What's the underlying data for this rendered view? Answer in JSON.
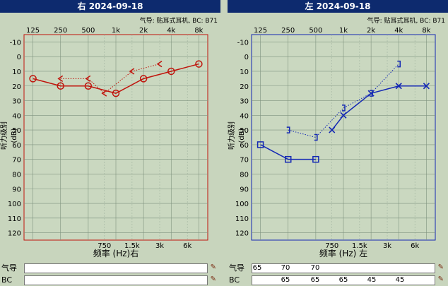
{
  "right": {
    "title": "右 2024-09-18",
    "subtitle": "",
    "axis_x_label": "频率 (Hz)右",
    "y_label": "听力级别 (dB)"
  },
  "left": {
    "title": "左 2024-09-18",
    "subtitle": "气导: 贴耳式耳机, BC: B71",
    "axis_x_label": "频率 (Hz) 左",
    "y_label": "听力级别 (dB)"
  },
  "right_subtitle": "气导: 贴耳式耳机, BC: B71",
  "ticks": {
    "top": [
      "125",
      "250",
      "500",
      "1k",
      "2k",
      "4k",
      "8k"
    ],
    "bottom": [
      "750",
      "1.5k",
      "3k",
      "6k"
    ],
    "y": [
      "-10",
      "0",
      "10",
      "20",
      "30",
      "40",
      "50",
      "60",
      "70",
      "80",
      "90",
      "100",
      "110",
      "120"
    ]
  },
  "table": {
    "ac_label": "气导",
    "bc_label": "BC",
    "right_ac": [
      "",
      "",
      "",
      "",
      "",
      "",
      ""
    ],
    "right_bc": [
      "",
      "",
      "",
      "",
      "",
      "",
      ""
    ],
    "left_ac": [
      "65",
      "70",
      "70",
      "",
      "",
      "",
      ""
    ],
    "left_bc": [
      "",
      "65",
      "65",
      "65",
      "45",
      "45",
      ""
    ],
    "edit_icon": "pencil-icon"
  },
  "colors": {
    "right": "#c0140c",
    "left": "#1428b4",
    "header": "#0d2a6e",
    "background": "#c8d5bd",
    "grid": "#8aa08a"
  },
  "chart_data": [
    {
      "type": "line",
      "title": "右 2024-09-18",
      "xlabel": "频率 (Hz)右",
      "ylabel": "听力级别 (dB)",
      "x_scale": "log",
      "y_inverted": true,
      "ylim": [
        -15,
        125
      ],
      "grid": true,
      "series": [
        {
          "marker": "circle",
          "style": "solid",
          "x": [
            125,
            250,
            500,
            1000,
            2000,
            4000,
            8000
          ],
          "y": [
            15,
            20,
            20,
            25,
            15,
            10,
            5
          ]
        },
        {
          "marker": "<",
          "style": "dotted",
          "x": [
            250,
            500,
            750,
            1500,
            3000
          ],
          "y": [
            15,
            15,
            25,
            10,
            5
          ]
        }
      ]
    },
    {
      "type": "line",
      "title": "左 2024-09-18",
      "xlabel": "频率 (Hz) 左",
      "ylabel": "听力级别 (dB)",
      "x_scale": "log",
      "y_inverted": true,
      "ylim": [
        -15,
        125
      ],
      "grid": true,
      "series": [
        {
          "marker": "square",
          "style": "solid",
          "x": [
            125,
            250,
            500
          ],
          "y": [
            60,
            70,
            70
          ]
        },
        {
          "marker": "x",
          "style": "solid",
          "x": [
            750,
            1000,
            2000,
            4000,
            8000
          ],
          "y": [
            50,
            40,
            25,
            20,
            20
          ]
        },
        {
          "marker": "]",
          "style": "dotted",
          "x": [
            250,
            500,
            1000,
            2000,
            4000
          ],
          "y": [
            50,
            55,
            35,
            25,
            5
          ]
        }
      ]
    }
  ]
}
